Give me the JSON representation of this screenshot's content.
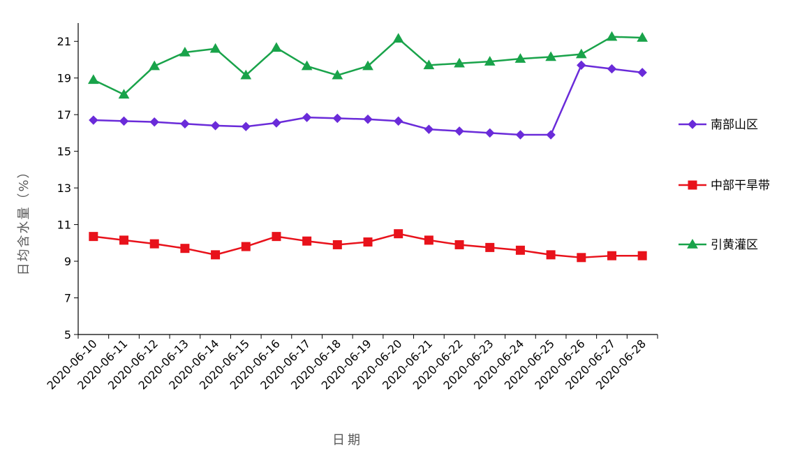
{
  "chart_data": {
    "type": "line",
    "title": "",
    "xlabel": "日期",
    "ylabel": "日均含水量（%）",
    "ylim": [
      5,
      22
    ],
    "yticks": [
      5,
      7,
      9,
      11,
      13,
      15,
      17,
      19,
      21
    ],
    "grid": false,
    "legend_position": "right",
    "categories": [
      "2020-06-10",
      "2020-06-11",
      "2020-06-12",
      "2020-06-13",
      "2020-06-14",
      "2020-06-15",
      "2020-06-16",
      "2020-06-17",
      "2020-06-18",
      "2020-06-19",
      "2020-06-20",
      "2020-06-21",
      "2020-06-22",
      "2020-06-23",
      "2020-06-24",
      "2020-06-25",
      "2020-06-26",
      "2020-06-27",
      "2020-06-28"
    ],
    "series": [
      {
        "name": "南部山区",
        "color": "#6a2bd9",
        "marker": "diamond",
        "values": [
          16.7,
          16.65,
          16.6,
          16.5,
          16.4,
          16.35,
          16.55,
          16.85,
          16.8,
          16.75,
          16.65,
          16.2,
          16.1,
          16.0,
          15.9,
          15.9,
          19.7,
          19.5,
          19.3
        ]
      },
      {
        "name": "中部干旱带",
        "color": "#e8121b",
        "marker": "square",
        "values": [
          10.35,
          10.15,
          9.95,
          9.7,
          9.35,
          9.8,
          10.35,
          10.1,
          9.9,
          10.05,
          10.5,
          10.15,
          9.9,
          9.75,
          9.6,
          9.35,
          9.2,
          9.3,
          9.3
        ]
      },
      {
        "name": "引黄灌区",
        "color": "#19a34a",
        "marker": "triangle",
        "values": [
          18.9,
          18.1,
          19.65,
          20.4,
          20.6,
          19.15,
          20.65,
          19.65,
          19.15,
          19.65,
          21.15,
          19.7,
          19.8,
          19.9,
          20.05,
          20.15,
          20.3,
          21.25,
          21.2
        ]
      }
    ]
  }
}
